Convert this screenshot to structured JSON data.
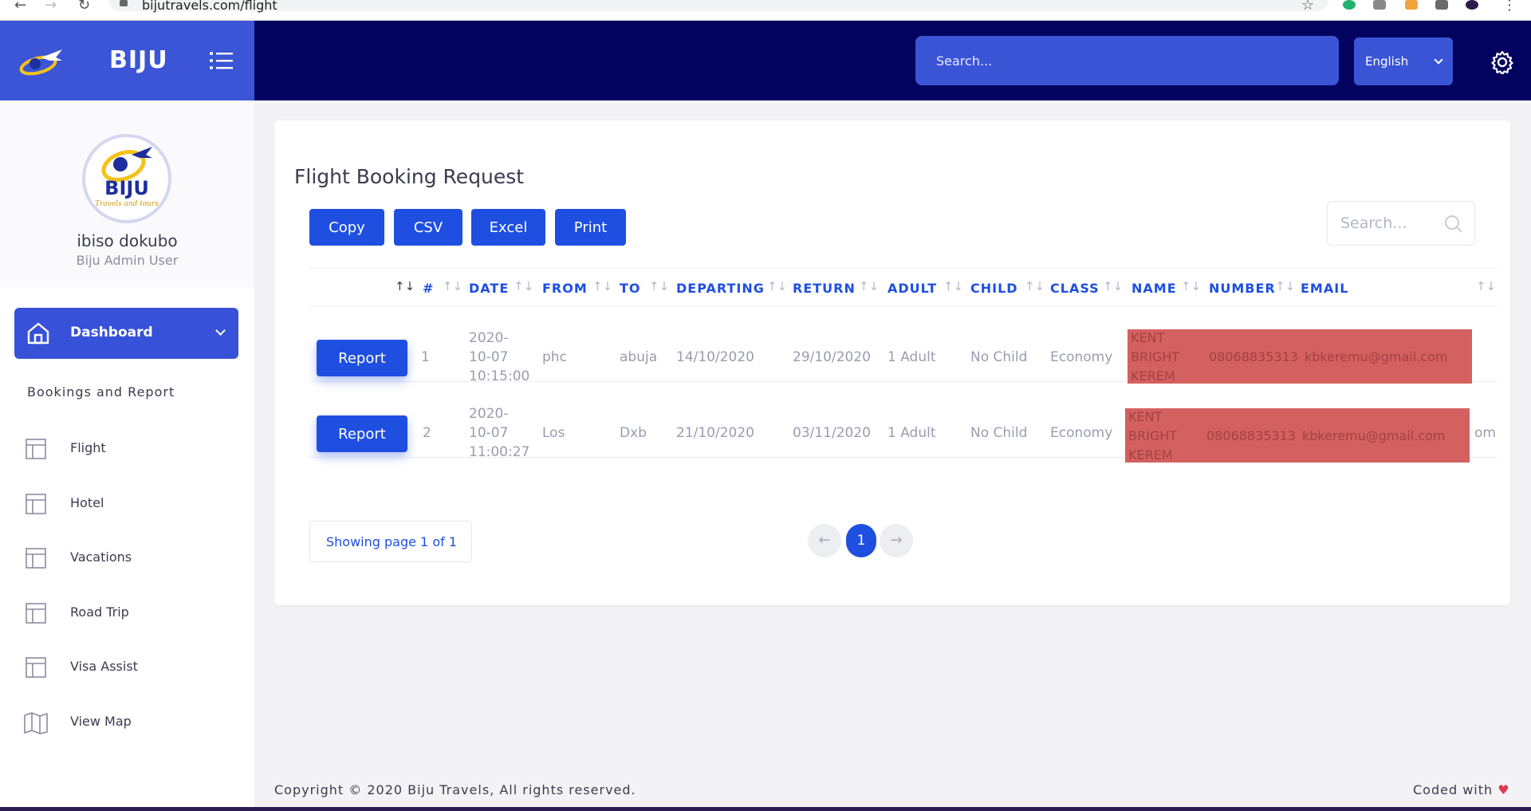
{
  "browser": {
    "url": "bijutravels.com/flight",
    "back": "←",
    "forward": "→",
    "reload": "↻",
    "star": "☆",
    "more": "⋮"
  },
  "header": {
    "brand": "BIJU",
    "search_placeholder": "Search...",
    "language": "English",
    "brand_color": "#3b55d6",
    "bar_color": "#02035e"
  },
  "sidebar": {
    "user_name": "ibiso dokubo",
    "user_role": "Biju Admin User",
    "avatar_text": "BIJU",
    "avatar_subtext": "Travels and tours",
    "dashboard_label": "Dashboard",
    "section_title": "Bookings and Report",
    "items": [
      {
        "label": "Flight",
        "icon": "table-icon"
      },
      {
        "label": "Hotel",
        "icon": "table-icon"
      },
      {
        "label": "Vacations",
        "icon": "table-icon"
      },
      {
        "label": "Road Trip",
        "icon": "table-icon"
      },
      {
        "label": "Visa Assist",
        "icon": "table-icon"
      },
      {
        "label": "View Map",
        "icon": "map-icon"
      }
    ]
  },
  "main": {
    "title": "Flight Booking Request",
    "export_buttons": [
      "Copy",
      "CSV",
      "Excel",
      "Print"
    ],
    "table_search_placeholder": "Search...",
    "columns": [
      "#",
      "DATE",
      "FROM",
      "TO",
      "DEPARTING",
      "RETURN",
      "ADULT",
      "CHILD",
      "CLASS",
      "NAME",
      "NUMBER",
      "EMAIL"
    ],
    "report_label": "Report",
    "rows": [
      {
        "num": "1",
        "date": [
          "2020-",
          "10-07",
          "10:15:00"
        ],
        "from": "phc",
        "to": "abuja",
        "departing": "14/10/2020",
        "return": "29/10/2020",
        "adult": "1 Adult",
        "child": "No Child",
        "class": "Economy",
        "name": [
          "KENT",
          "BRIGHT",
          "KEREM"
        ],
        "number": "08068835313",
        "email": "kbkeremu@gmail.com",
        "email_overflow": ""
      },
      {
        "num": "2",
        "date": [
          "2020-",
          "10-07",
          "11:00:27"
        ],
        "from": "Los",
        "to": "Dxb",
        "departing": "21/10/2020",
        "return": "03/11/2020",
        "adult": "1 Adult",
        "child": "No Child",
        "class": "Economy",
        "name": [
          "KENT",
          "BRIGHT",
          "KEREM"
        ],
        "number": "08068835313",
        "email": "kbkeremu@gmail.com",
        "email_overflow": "om"
      }
    ],
    "page_info": "Showing page 1 of 1",
    "current_page": "1",
    "prev": "←",
    "next": "→"
  },
  "footer": {
    "copyright": "Copyright © 2020 Biju Travels, All rights reserved.",
    "coded_with": "Coded with",
    "heart": "♥"
  }
}
